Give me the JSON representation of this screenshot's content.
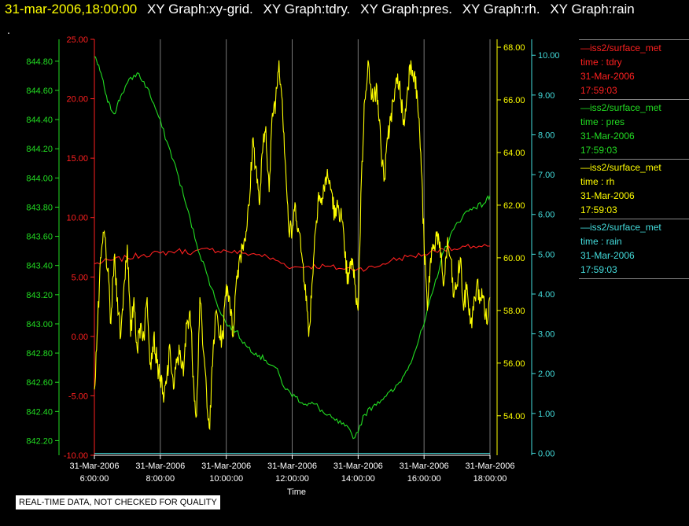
{
  "header": {
    "datetime": "31-mar-2006,18:00:00",
    "graphs": [
      "XY Graph:xy-grid.",
      "XY Graph:tdry.",
      "XY Graph:pres.",
      "XY Graph:rh.",
      "XY Graph:rain"
    ],
    "dot": "."
  },
  "colors": {
    "tdry": "#ff2020",
    "pres": "#22dd22",
    "rh": "#ffff00",
    "rain": "#44dddd",
    "grid": "#777777"
  },
  "legend": [
    {
      "source": "iss2/surface_met",
      "var": "time : tdry",
      "date": "31-Mar-2006",
      "time": "17:59:03",
      "color": "#ff2020"
    },
    {
      "source": "iss2/surface_met",
      "var": "time : pres",
      "date": "31-Mar-2006",
      "time": "17:59:03",
      "color": "#22dd22"
    },
    {
      "source": "iss2/surface_met",
      "var": "time : rh",
      "date": "31-Mar-2006",
      "time": "17:59:03",
      "color": "#ffff00"
    },
    {
      "source": "iss2/surface_met",
      "var": "time : rain",
      "date": "31-Mar-2006",
      "time": "17:59:03",
      "color": "#44dddd"
    }
  ],
  "notice": "REAL-TIME DATA, NOT CHECKED FOR QUALITY",
  "chart_data": {
    "type": "line",
    "xlabel": "Time",
    "x_ticks": [
      [
        "31-Mar-2006",
        "6:00:00"
      ],
      [
        "31-Mar-2006",
        "8:00:00"
      ],
      [
        "31-Mar-2006",
        "10:00:00"
      ],
      [
        "31-Mar-2006",
        "12:00:00"
      ],
      [
        "31-Mar-2006",
        "14:00:00"
      ],
      [
        "31-Mar-2006",
        "16:00:00"
      ],
      [
        "31-Mar-2006",
        "18:00:00"
      ]
    ],
    "x_hours": [
      6,
      8,
      10,
      12,
      14,
      16,
      18
    ],
    "xlim_hours": [
      6,
      18
    ],
    "grid": "vertical",
    "axes": {
      "tdry": {
        "min": -10,
        "max": 25,
        "ticks": [
          "-10.00",
          "-5.00",
          "0.00",
          "5.00",
          "10.00",
          "15.00",
          "20.00",
          "25.00"
        ]
      },
      "pres": {
        "min": 842.1,
        "max": 844.95,
        "ticks": [
          "842.20",
          "842.40",
          "842.60",
          "842.80",
          "843.00",
          "843.20",
          "843.40",
          "843.60",
          "843.80",
          "844.00",
          "844.20",
          "844.40",
          "844.60",
          "844.80"
        ]
      },
      "rh": {
        "min": 52.5,
        "max": 68.3,
        "ticks": [
          "54.00",
          "56.00",
          "58.00",
          "60.00",
          "62.00",
          "64.00",
          "66.00",
          "68.00"
        ]
      },
      "rain": {
        "min": -0.05,
        "max": 10.4,
        "ticks": [
          "0.00",
          "1.00",
          "2.00",
          "3.00",
          "4.00",
          "5.00",
          "6.00",
          "7.00",
          "8.00",
          "9.00",
          "10.00"
        ]
      }
    },
    "series": [
      {
        "name": "tdry",
        "axis": "tdry",
        "jitter": 0.25,
        "x": [
          6.0,
          6.5,
          7.0,
          7.5,
          8.0,
          8.5,
          9.0,
          9.5,
          10.0,
          10.5,
          11.0,
          11.5,
          12.0,
          12.5,
          13.0,
          13.5,
          14.0,
          14.5,
          15.0,
          15.5,
          16.0,
          16.5,
          17.0,
          17.5,
          18.0
        ],
        "y": [
          6.1,
          6.4,
          6.6,
          6.9,
          7.0,
          7.2,
          7.1,
          7.3,
          7.2,
          7.0,
          6.9,
          6.4,
          5.8,
          5.9,
          5.9,
          5.7,
          5.7,
          5.8,
          6.4,
          6.7,
          6.9,
          7.4,
          7.3,
          7.6,
          7.6
        ]
      },
      {
        "name": "pres",
        "axis": "pres",
        "jitter": 0.02,
        "x": [
          6.0,
          6.2,
          6.4,
          6.6,
          6.8,
          7.0,
          7.3,
          7.6,
          7.9,
          8.2,
          8.5,
          8.8,
          9.1,
          9.4,
          9.7,
          10.0,
          10.3,
          10.6,
          10.9,
          11.2,
          11.5,
          11.8,
          12.1,
          12.4,
          12.7,
          13.0,
          13.3,
          13.6,
          13.9,
          14.2,
          14.5,
          14.8,
          15.1,
          15.4,
          15.7,
          16.0,
          16.3,
          16.6,
          16.9,
          17.2,
          17.5,
          17.8,
          18.0
        ],
        "y": [
          844.83,
          844.72,
          844.52,
          844.44,
          844.56,
          844.65,
          844.72,
          844.62,
          844.45,
          844.25,
          844.05,
          843.8,
          843.55,
          843.35,
          843.15,
          843.0,
          842.95,
          842.85,
          842.8,
          842.75,
          842.7,
          842.55,
          842.5,
          842.45,
          842.45,
          842.38,
          842.34,
          842.3,
          842.22,
          842.38,
          842.45,
          842.5,
          842.55,
          842.65,
          842.8,
          843.0,
          843.25,
          843.5,
          843.65,
          843.75,
          843.8,
          843.82,
          843.88
        ]
      },
      {
        "name": "rh",
        "axis": "rh",
        "jitter": 0.45,
        "x": [
          6.0,
          6.1,
          6.2,
          6.3,
          6.4,
          6.5,
          6.6,
          6.7,
          6.8,
          6.9,
          7.0,
          7.1,
          7.2,
          7.3,
          7.4,
          7.5,
          7.6,
          7.7,
          7.8,
          7.9,
          8.0,
          8.1,
          8.2,
          8.3,
          8.4,
          8.5,
          8.6,
          8.7,
          8.8,
          8.9,
          9.0,
          9.1,
          9.2,
          9.3,
          9.4,
          9.5,
          9.6,
          9.7,
          9.8,
          9.9,
          10.0,
          10.1,
          10.2,
          10.3,
          10.4,
          10.5,
          10.6,
          10.7,
          10.8,
          10.9,
          11.0,
          11.1,
          11.2,
          11.3,
          11.4,
          11.5,
          11.6,
          11.7,
          11.8,
          11.9,
          12.0,
          12.1,
          12.2,
          12.3,
          12.4,
          12.5,
          12.6,
          12.7,
          12.8,
          12.9,
          13.0,
          13.1,
          13.2,
          13.3,
          13.4,
          13.5,
          13.6,
          13.7,
          13.8,
          13.9,
          14.0,
          14.1,
          14.2,
          14.3,
          14.4,
          14.5,
          14.6,
          14.7,
          14.8,
          14.9,
          15.0,
          15.1,
          15.2,
          15.3,
          15.4,
          15.5,
          15.6,
          15.7,
          15.8,
          15.9,
          16.0,
          16.1,
          16.2,
          16.3,
          16.4,
          16.5,
          16.6,
          16.7,
          16.8,
          16.9,
          17.0,
          17.1,
          17.2,
          17.3,
          17.4,
          17.5,
          17.6,
          17.7,
          17.8,
          17.9,
          18.0
        ],
        "y": [
          55.0,
          57.5,
          60.0,
          61.0,
          59.5,
          57.5,
          60.0,
          58.5,
          57.0,
          59.0,
          60.5,
          57.0,
          58.5,
          56.5,
          57.5,
          57.0,
          58.5,
          56.0,
          57.0,
          56.0,
          55.5,
          54.5,
          55.5,
          56.5,
          55.0,
          56.0,
          56.5,
          55.5,
          57.5,
          58.0,
          55.5,
          54.0,
          58.5,
          56.5,
          55.0,
          53.5,
          56.5,
          58.0,
          57.0,
          57.0,
          59.0,
          58.5,
          57.0,
          59.0,
          60.0,
          60.5,
          61.0,
          62.0,
          64.5,
          63.5,
          62.0,
          64.0,
          65.0,
          62.5,
          65.5,
          66.0,
          67.5,
          66.0,
          63.5,
          61.0,
          61.0,
          62.0,
          61.0,
          60.0,
          59.0,
          57.0,
          59.0,
          61.0,
          62.5,
          62.0,
          63.0,
          63.0,
          62.5,
          61.5,
          62.0,
          61.5,
          60.0,
          59.0,
          60.0,
          59.0,
          58.0,
          63.0,
          66.0,
          67.5,
          66.0,
          66.5,
          66.0,
          64.0,
          63.0,
          64.5,
          65.5,
          66.0,
          67.0,
          66.0,
          65.0,
          66.5,
          67.5,
          67.0,
          66.0,
          64.0,
          60.5,
          58.0,
          60.0,
          60.5,
          61.0,
          60.0,
          59.0,
          60.5,
          60.0,
          58.5,
          59.0,
          60.0,
          58.0,
          59.0,
          57.5,
          58.0,
          59.0,
          58.5,
          58.5,
          57.5,
          58.5
        ]
      },
      {
        "name": "rain",
        "axis": "rain",
        "jitter": 0,
        "x": [
          6.0,
          18.0
        ],
        "y": [
          0.0,
          0.0
        ]
      }
    ]
  }
}
